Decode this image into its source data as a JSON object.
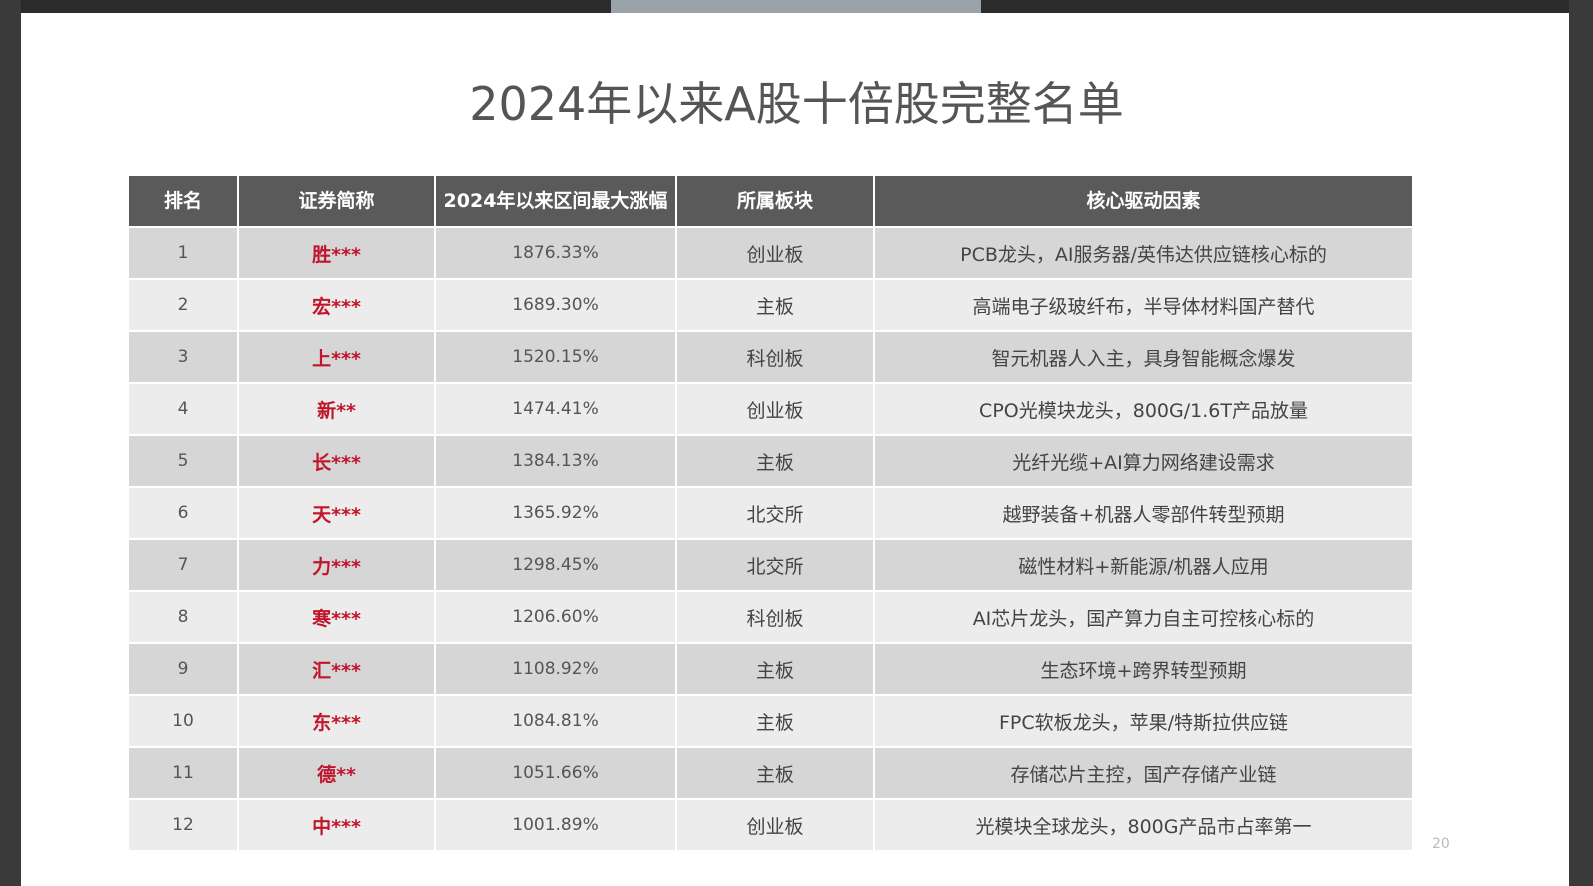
{
  "header": {
    "title": "2024年以来A股十倍股完整名单"
  },
  "table": {
    "columns": [
      "排名",
      "证券简称",
      "2024年以来区间最大涨幅",
      "所属板块",
      "核心驱动因素"
    ],
    "rows": [
      [
        "1",
        "胜***",
        "1876.33%",
        "创业板",
        "PCB龙头，AI服务器/英伟达供应链核心标的"
      ],
      [
        "2",
        "宏***",
        "1689.30%",
        "主板",
        "高端电子级玻纤布，半导体材料国产替代"
      ],
      [
        "3",
        "上***",
        "1520.15%",
        "科创板",
        "智元机器人入主，具身智能概念爆发"
      ],
      [
        "4",
        "新**",
        "1474.41%",
        "创业板",
        "CPO光模块龙头，800G/1.6T产品放量"
      ],
      [
        "5",
        "长***",
        "1384.13%",
        "主板",
        "光纤光缆+AI算力网络建设需求"
      ],
      [
        "6",
        "天***",
        "1365.92%",
        "北交所",
        "越野装备+机器人零部件转型预期"
      ],
      [
        "7",
        "力***",
        "1298.45%",
        "北交所",
        "磁性材料+新能源/机器人应用"
      ],
      [
        "8",
        "寒***",
        "1206.60%",
        "科创板",
        "AI芯片龙头，国产算力自主可控核心标的"
      ],
      [
        "9",
        "汇***",
        "1108.92%",
        "主板",
        "生态环境+跨界转型预期"
      ],
      [
        "10",
        "东***",
        "1084.81%",
        "主板",
        "FPC软板龙头，苹果/特斯拉供应链"
      ],
      [
        "11",
        "德**",
        "1051.66%",
        "主板",
        "存储芯片主控，国产存储产业链"
      ],
      [
        "12",
        "中***",
        "1001.89%",
        "创业板",
        "光模块全球龙头，800G产品市占率第一"
      ]
    ]
  },
  "footer": {
    "page_number": "20"
  }
}
